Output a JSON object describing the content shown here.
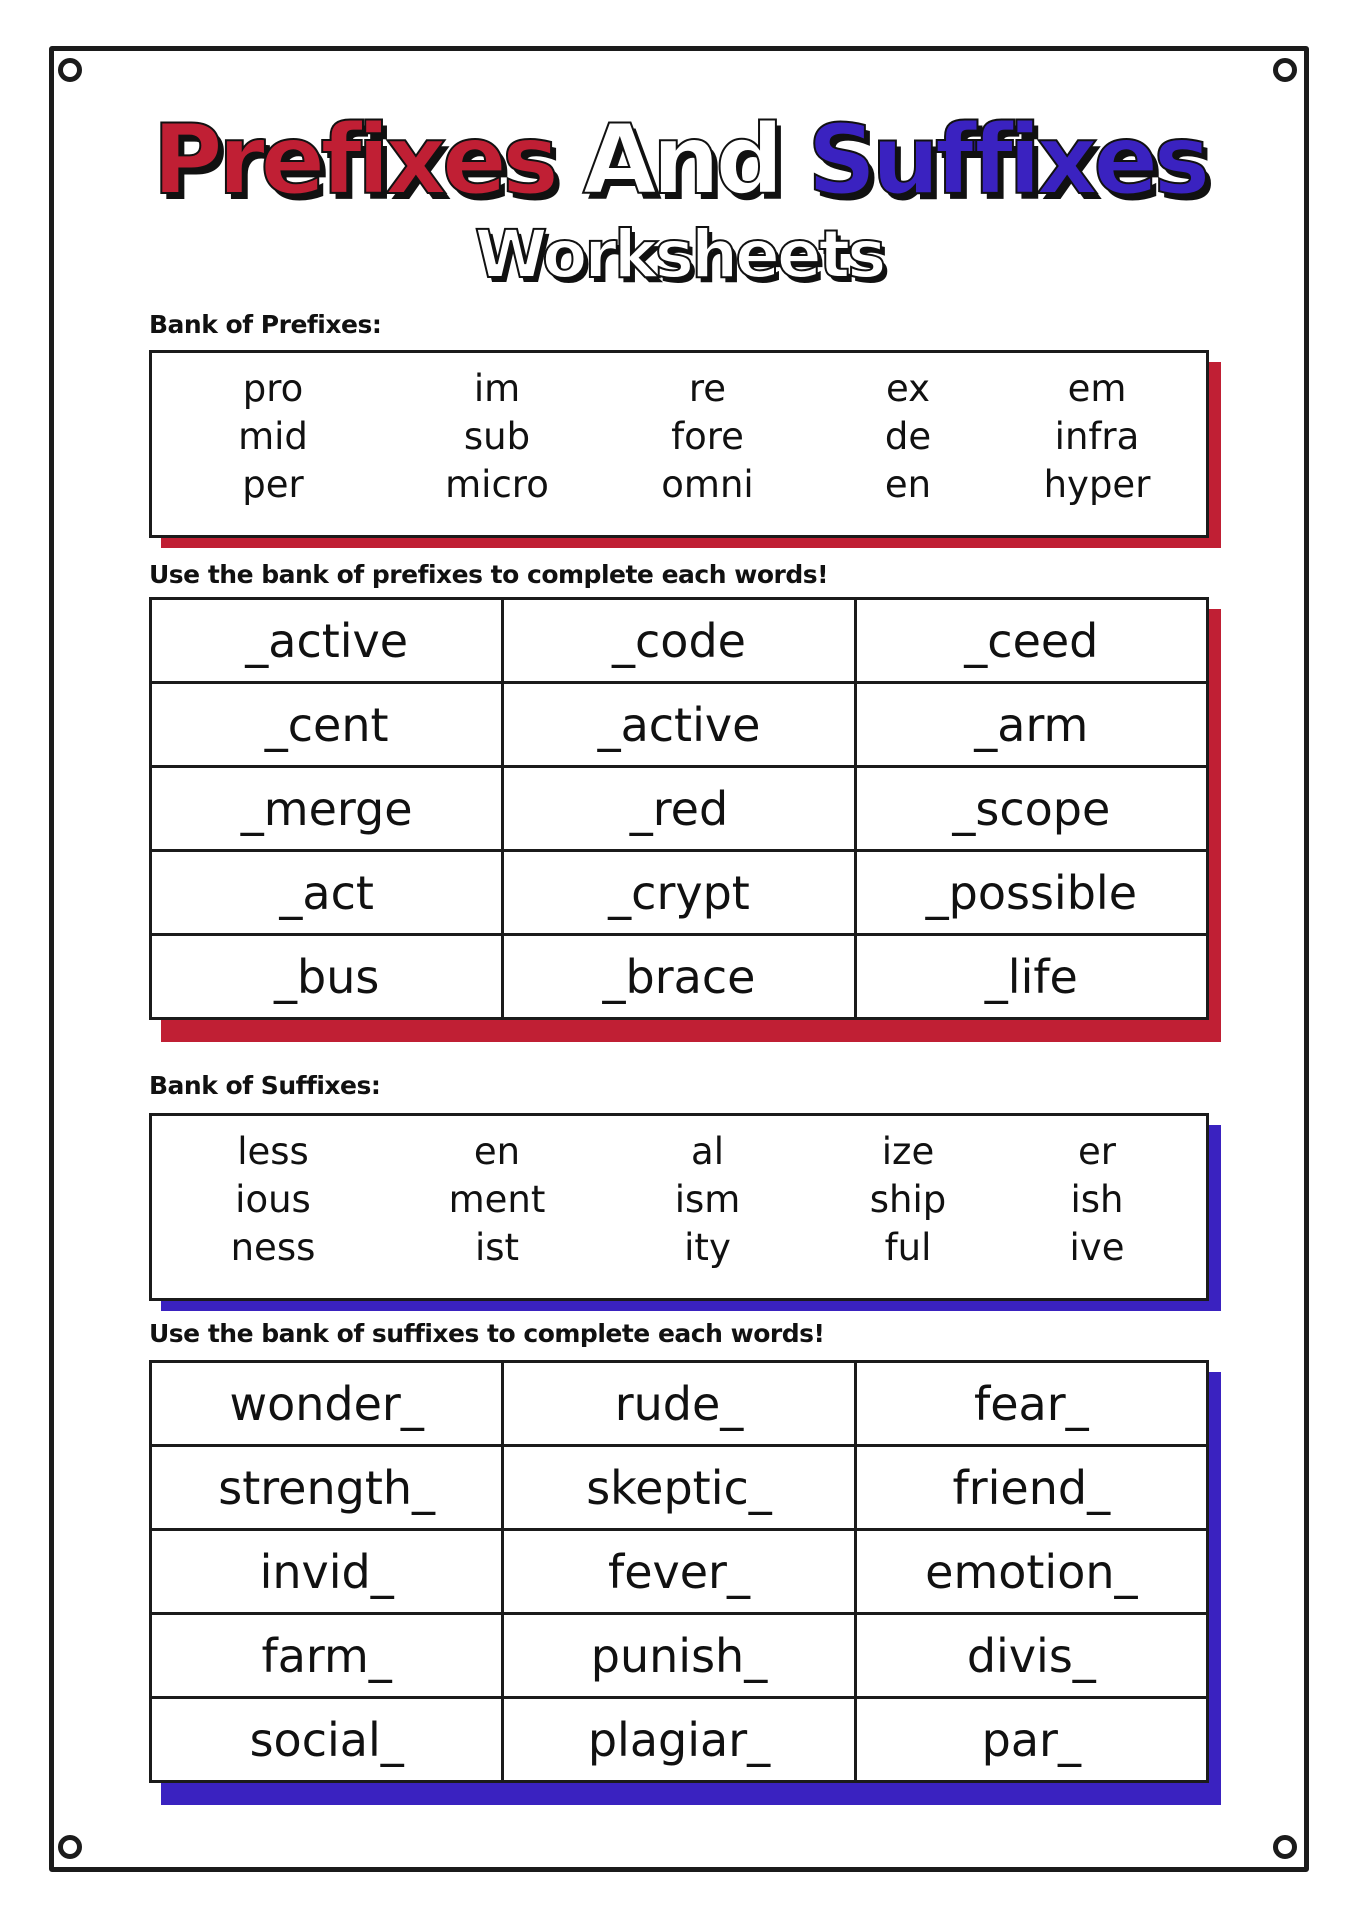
{
  "title": {
    "part1": "Prefixes",
    "part2": "And",
    "part3": "Suffixes",
    "subtitle": "Worksheets"
  },
  "colors": {
    "red": "#c01f34",
    "blue": "#3a22c0",
    "ink": "#1b1b1b"
  },
  "prefix_bank": {
    "label": "Bank of Prefixes:",
    "columns": [
      [
        "pro",
        "mid",
        "per"
      ],
      [
        "im",
        "sub",
        "micro"
      ],
      [
        "re",
        "fore",
        "omni"
      ],
      [
        "ex",
        "de",
        "en"
      ],
      [
        "em",
        "infra",
        "hyper"
      ]
    ]
  },
  "prefix_exercise": {
    "instruction": "Use the bank of prefixes to complete each words!",
    "rows": [
      [
        "_active",
        "_code",
        "_ceed"
      ],
      [
        "_cent",
        "_active",
        "_arm"
      ],
      [
        "_merge",
        "_red",
        "_scope"
      ],
      [
        "_act",
        "_crypt",
        "_possible"
      ],
      [
        "_bus",
        "_brace",
        "_life"
      ]
    ]
  },
  "suffix_bank": {
    "label": "Bank of Suffixes:",
    "columns": [
      [
        "less",
        "ious",
        "ness"
      ],
      [
        "en",
        "ment",
        "ist"
      ],
      [
        "al",
        "ism",
        "ity"
      ],
      [
        "ize",
        "ship",
        "ful"
      ],
      [
        "er",
        "ish",
        "ive"
      ]
    ]
  },
  "suffix_exercise": {
    "instruction": "Use the bank of suffixes to complete each words!",
    "rows": [
      [
        "wonder_",
        "rude_",
        "fear_"
      ],
      [
        "strength_",
        "skeptic_",
        "friend_"
      ],
      [
        "invid_",
        "fever_",
        "emotion_"
      ],
      [
        "farm_",
        "punish_",
        "divis_"
      ],
      [
        "social_",
        "plagiar_",
        "par_"
      ]
    ]
  }
}
